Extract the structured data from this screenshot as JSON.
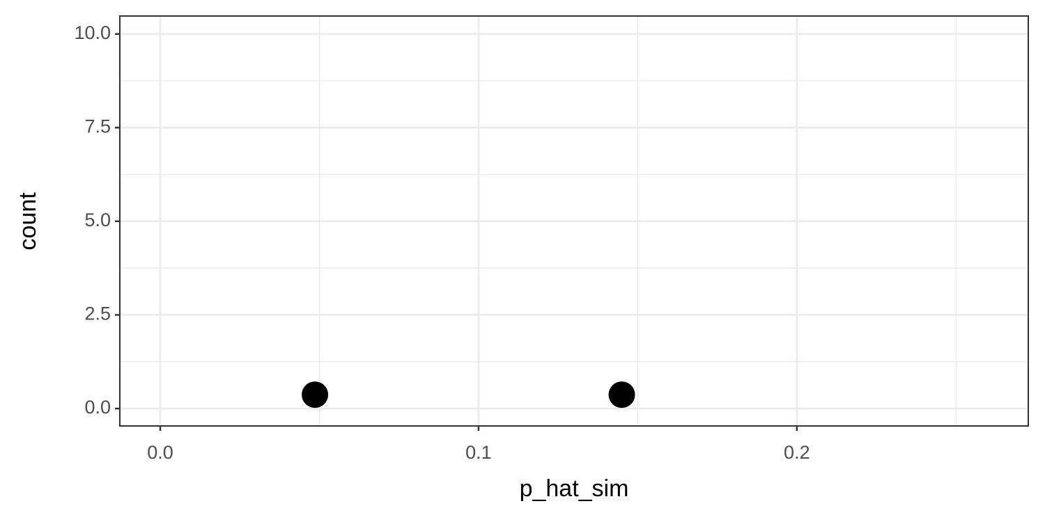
{
  "chart_data": {
    "type": "scatter",
    "xlabel": "p_hat_sim",
    "ylabel": "count",
    "x": [
      0.0486,
      0.145
    ],
    "values": [
      0.37,
      0.37
    ],
    "color": "#000000",
    "xlim": [
      -0.0127,
      0.2727
    ],
    "ylim": [
      -0.465,
      10.48
    ],
    "xticks": [
      {
        "value": 0,
        "label": "0.0"
      },
      0.1,
      0.2
    ],
    "yticks": [
      {
        "value": 0,
        "label": "0.0"
      },
      2.5,
      {
        "value": 5,
        "label": "5.0"
      },
      7.5,
      {
        "value": 10,
        "label": "10.0"
      }
    ],
    "x_minor_grid": [
      0.05,
      0.15,
      0.25
    ],
    "y_minor_grid": [
      1.25,
      3.75,
      6.25,
      8.75
    ],
    "grid": true
  }
}
